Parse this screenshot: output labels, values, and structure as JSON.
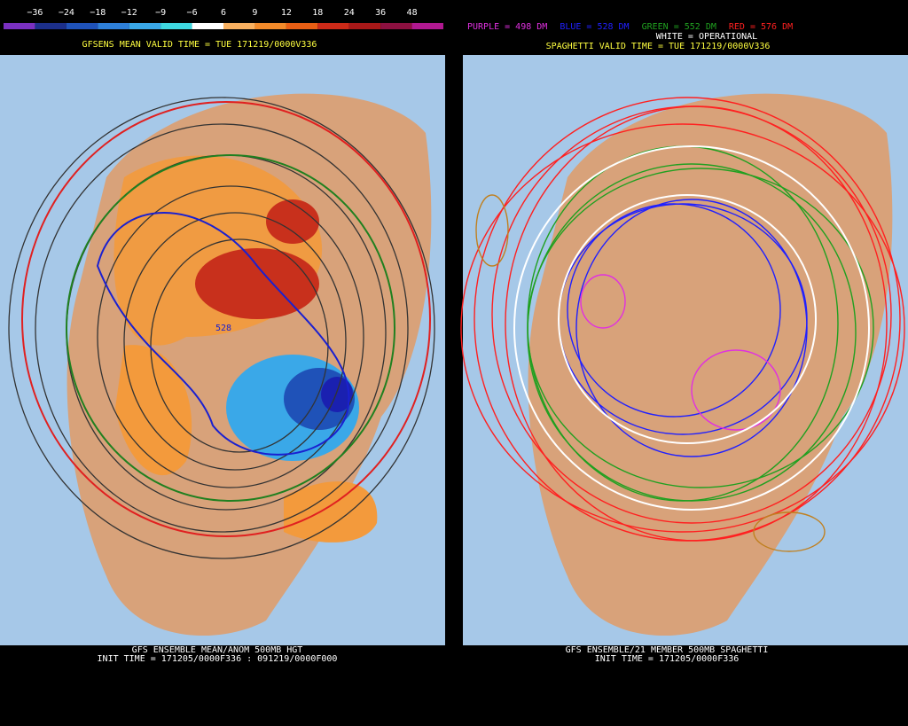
{
  "left_panel": {
    "colorbar": {
      "labels": [
        {
          "value": -36,
          "label": "−36"
        },
        {
          "value": -24,
          "label": "−24"
        },
        {
          "value": -18,
          "label": "−18"
        },
        {
          "value": -12,
          "label": "−12"
        },
        {
          "value": -9,
          "label": "−9"
        },
        {
          "value": -6,
          "label": "−6"
        },
        6,
        9,
        12,
        18,
        24,
        36,
        48
      ],
      "colors": [
        "#7a30c0",
        "#1c2f8a",
        "#1f52b8",
        "#2e7fd8",
        "#3aa8e8",
        "#3fd8e0",
        "#ffffff",
        "#f8b060",
        "#f28a2a",
        "#e85e14",
        "#cc2a18",
        "#a81818",
        "#8c1040",
        "#b01890"
      ]
    },
    "title": "GFSENS MEAN VALID TIME = TUE 171219/0000V336",
    "contour_label": "528",
    "footer": [
      "GFS ENSEMBLE MEAN/ANOM 500MB HGT",
      "INIT TIME = 171205/0000F336 : 091219/0000F000"
    ]
  },
  "right_panel": {
    "legend": [
      {
        "text": "PURPLE = 498 DM",
        "color": "#e030e0"
      },
      {
        "text": "BLUE = 528 DM",
        "color": "#2020ff"
      },
      {
        "text": "GREEN = 552 DM",
        "color": "#20a020"
      },
      {
        "text": "RED = 576 DM",
        "color": "#ff2020"
      }
    ],
    "operational": "WHITE = OPERATIONAL",
    "title": "SPAGHETTI VALID TIME = TUE 171219/0000V336",
    "footer": [
      "GFS ENSEMBLE/21 MEMBER 500MB SPAGHETTI",
      "INIT TIME = 171205/0000F336"
    ]
  }
}
